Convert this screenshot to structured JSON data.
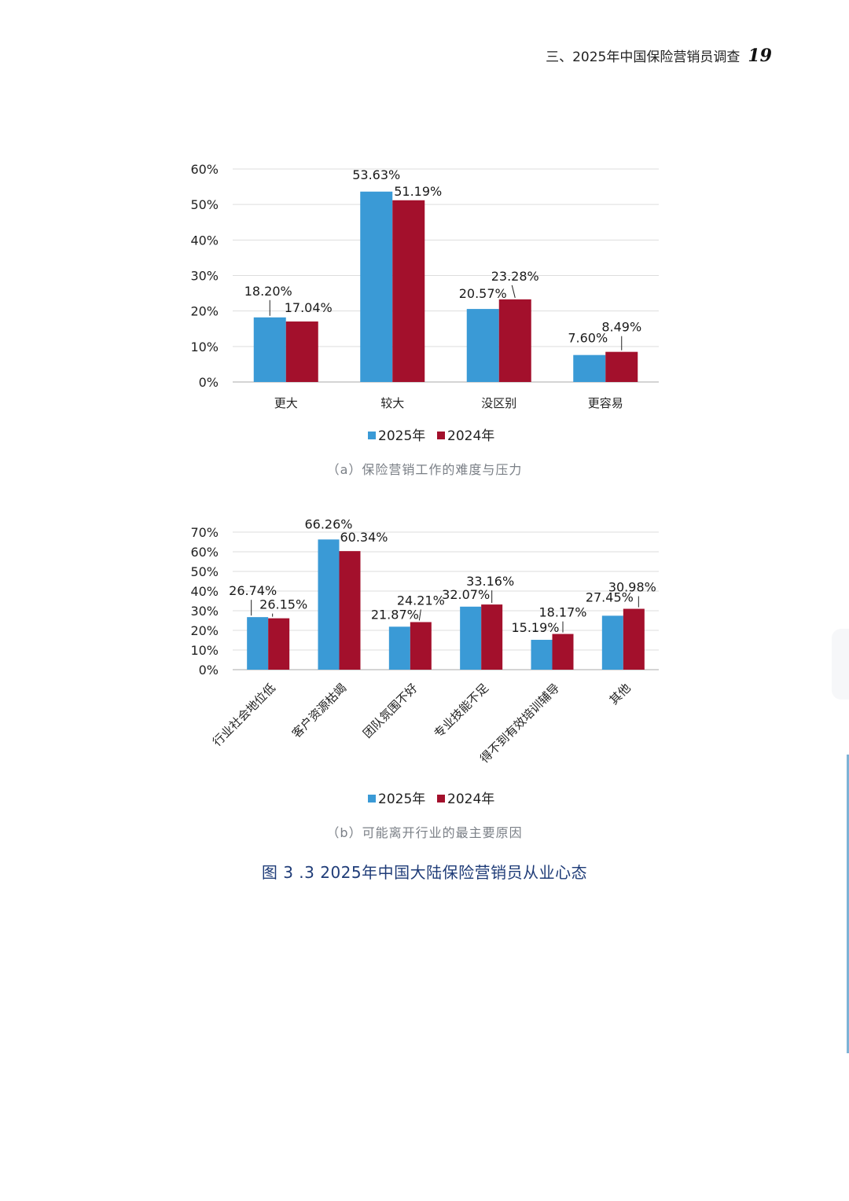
{
  "header": {
    "section_title": "三、2025年中国保险营销员调查",
    "page_number": "19"
  },
  "figure_title": "图 3 .3  2025年中国大陆保险营销员从业心态",
  "colors": {
    "series_2025": "#3a9ad6",
    "series_2024": "#a3102c",
    "grid": "#dddddd",
    "axis": "#bbbbbb"
  },
  "chart_data": [
    {
      "type": "bar",
      "caption": "（a）保险营销工作的难度与压力",
      "categories": [
        "更大",
        "较大",
        "没区别",
        "更容易"
      ],
      "series": [
        {
          "name": "2025年",
          "values": [
            18.2,
            53.63,
            20.57,
            7.6
          ],
          "labels": [
            "18.20%",
            "53.63%",
            "20.57%",
            "7.60%"
          ]
        },
        {
          "name": "2024年",
          "values": [
            17.04,
            51.19,
            23.28,
            8.49
          ],
          "labels": [
            "17.04%",
            "51.19%",
            "23.28%",
            "8.49%"
          ]
        }
      ],
      "yticks": [
        "0%",
        "10%",
        "20%",
        "30%",
        "40%",
        "50%",
        "60%"
      ],
      "ylim": [
        0,
        60
      ],
      "grid": true,
      "legend": "bottom-center",
      "xlabel": "",
      "ylabel": ""
    },
    {
      "type": "bar",
      "caption": "（b）可能离开行业的最主要原因",
      "categories": [
        "行业社会地位低",
        "客户资源枯竭",
        "团队氛围不好",
        "专业技能不足",
        "得不到有效培训辅导",
        "其他"
      ],
      "series": [
        {
          "name": "2025年",
          "values": [
            26.74,
            66.26,
            21.87,
            32.07,
            15.19,
            27.45
          ],
          "labels": [
            "26.74%",
            "66.26%",
            "21.87%",
            "32.07%",
            "15.19%",
            "27.45%"
          ]
        },
        {
          "name": "2024年",
          "values": [
            26.15,
            60.34,
            24.21,
            33.16,
            18.17,
            30.98
          ],
          "labels": [
            "26.15%",
            "60.34%",
            "24.21%",
            "33.16%",
            "18.17%",
            "30.98%"
          ]
        }
      ],
      "yticks": [
        "0%",
        "10%",
        "20%",
        "30%",
        "40%",
        "50%",
        "60%",
        "70%"
      ],
      "ylim": [
        0,
        70
      ],
      "grid": true,
      "legend": "bottom-center",
      "xlabel": "",
      "ylabel": ""
    }
  ]
}
